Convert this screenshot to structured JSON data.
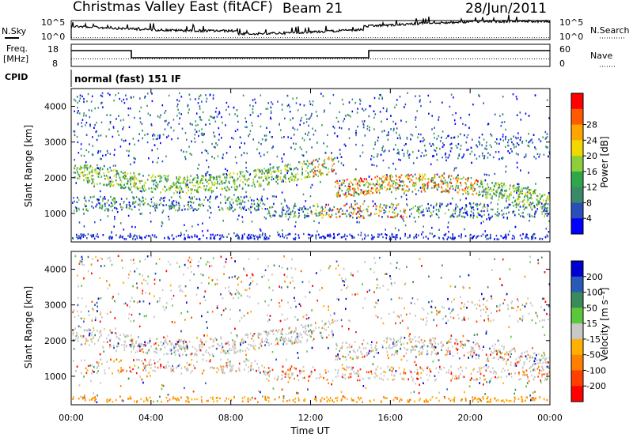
{
  "header": {
    "title": "Christmas Valley East (fitACF)",
    "beam": "Beam 21",
    "date": "28/Jun/2011"
  },
  "top_panels": {
    "nsky_label": "N.Sky",
    "nsky_tick_top": "10^5",
    "nsky_tick_bottom": "10^0",
    "nsearch_label": "N.Search",
    "freq_label_line1": "Freq.",
    "freq_label_line2": "[MHz]",
    "freq_tick_top": "18",
    "freq_tick_bottom": "8",
    "nave_tick_top": "60",
    "nave_tick_bottom": "0",
    "nave_label": "Nave",
    "cpid_label": "CPID",
    "cpid_text": "normal (fast) 151 IF"
  },
  "chart_data": [
    {
      "type": "heatmap",
      "name": "power",
      "ylabel": "Slant Range [km]",
      "xlabel": "Time UT",
      "x_ticks": [
        "00:00",
        "04:00",
        "08:00",
        "12:00",
        "16:00",
        "20:00",
        "00:00"
      ],
      "y_ticks": [
        "1000",
        "2000",
        "3000",
        "4000"
      ],
      "ylim": [
        200,
        4500
      ],
      "colorbar": {
        "label": "Power [dB]",
        "ticks": [
          "4",
          "8",
          "12",
          "16",
          "20",
          "24",
          "28"
        ],
        "colors": [
          "#0000ff",
          "#2a4fb8",
          "#3a8a6a",
          "#2fa64a",
          "#8ccf3a",
          "#f0d800",
          "#ffa500",
          "#ff5a00",
          "#ff0000"
        ]
      }
    },
    {
      "type": "heatmap",
      "name": "velocity",
      "ylabel": "Slant Range [km]",
      "xlabel": "Time UT",
      "x_ticks": [
        "00:00",
        "04:00",
        "08:00",
        "12:00",
        "16:00",
        "20:00",
        "00:00"
      ],
      "y_ticks": [
        "1000",
        "2000",
        "3000",
        "4000"
      ],
      "ylim": [
        200,
        4500
      ],
      "colorbar": {
        "label": "Velocity [m s⁻¹]",
        "ticks": [
          "200",
          "100",
          "50",
          "15",
          "-15",
          "-50",
          "-100",
          "-200"
        ],
        "colors": [
          "#0000d0",
          "#2a5ab8",
          "#3a8a5a",
          "#5ac83a",
          "#c8c8c8",
          "#ffb000",
          "#ff8000",
          "#ff4000",
          "#ff0000"
        ]
      }
    }
  ]
}
